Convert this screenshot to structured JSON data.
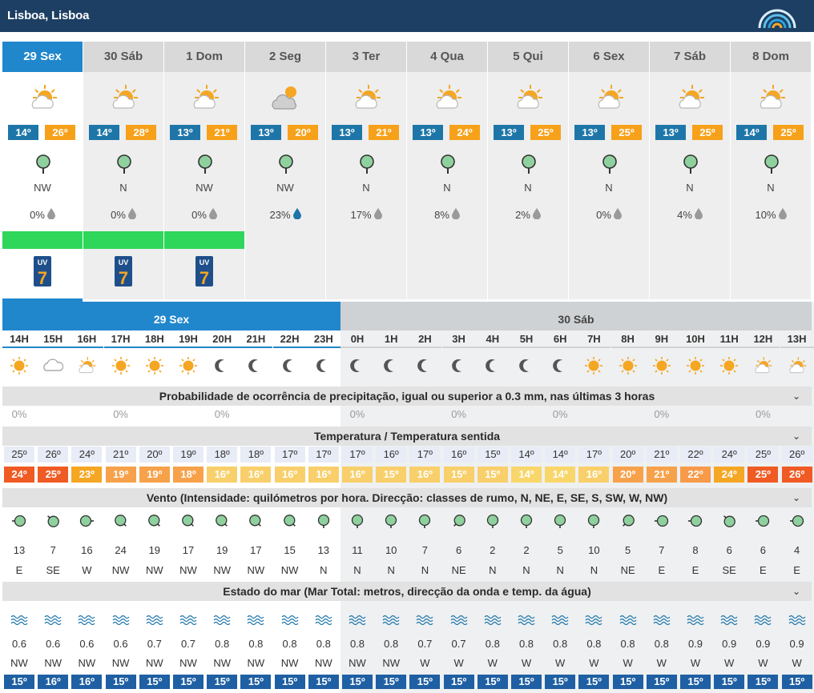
{
  "header": {
    "location": "Lisboa, Lisboa"
  },
  "days": [
    {
      "label": "29 Sex",
      "icon": "sun-cloud-icon",
      "tmin": "14º",
      "tmax": "26º",
      "wind_dir": "NW",
      "rain": "0%",
      "drop": "grey",
      "green": true,
      "uv": "7",
      "today": true
    },
    {
      "label": "30 Sáb",
      "icon": "sun-cloud-icon",
      "tmin": "14º",
      "tmax": "28º",
      "wind_dir": "N",
      "rain": "0%",
      "drop": "grey",
      "green": true,
      "uv": "7"
    },
    {
      "label": "1 Dom",
      "icon": "sun-cloud-icon",
      "tmin": "13º",
      "tmax": "21º",
      "wind_dir": "NW",
      "rain": "0%",
      "drop": "grey",
      "green": true,
      "uv": "7"
    },
    {
      "label": "2 Seg",
      "icon": "cloud-sun-icon",
      "tmin": "13º",
      "tmax": "20º",
      "wind_dir": "NW",
      "rain": "23%",
      "drop": "blue",
      "green": false
    },
    {
      "label": "3 Ter",
      "icon": "sun-cloud-icon",
      "tmin": "13º",
      "tmax": "21º",
      "wind_dir": "N",
      "rain": "17%",
      "drop": "grey",
      "green": false
    },
    {
      "label": "4 Qua",
      "icon": "sun-cloud-icon",
      "tmin": "13º",
      "tmax": "24º",
      "wind_dir": "N",
      "rain": "8%",
      "drop": "grey",
      "green": false
    },
    {
      "label": "5 Qui",
      "icon": "sun-cloud-icon",
      "tmin": "13º",
      "tmax": "25º",
      "wind_dir": "N",
      "rain": "2%",
      "drop": "grey",
      "green": false
    },
    {
      "label": "6 Sex",
      "icon": "sun-cloud-icon",
      "tmin": "13º",
      "tmax": "25º",
      "wind_dir": "N",
      "rain": "0%",
      "drop": "grey",
      "green": false
    },
    {
      "label": "7 Sáb",
      "icon": "sun-cloud-icon",
      "tmin": "13º",
      "tmax": "25º",
      "wind_dir": "N",
      "rain": "4%",
      "drop": "grey",
      "green": false
    },
    {
      "label": "8 Dom",
      "icon": "sun-cloud-icon",
      "tmin": "14º",
      "tmax": "25º",
      "wind_dir": "N",
      "rain": "10%",
      "drop": "grey",
      "green": false
    }
  ],
  "hourly": {
    "day_labels": [
      "29 Sex",
      "30 Sáb"
    ],
    "hours": [
      "14H",
      "15H",
      "16H",
      "17H",
      "18H",
      "19H",
      "20H",
      "21H",
      "22H",
      "23H",
      "0H",
      "1H",
      "2H",
      "3H",
      "4H",
      "5H",
      "6H",
      "7H",
      "8H",
      "9H",
      "10H",
      "11H",
      "12H",
      "13H"
    ],
    "icons": [
      "sun",
      "cloud",
      "sun-cloud",
      "sun",
      "sun",
      "sun",
      "moon",
      "moon",
      "moon",
      "moon",
      "moon",
      "moon",
      "moon",
      "moon",
      "moon",
      "moon",
      "moon",
      "sun",
      "sun",
      "sun",
      "sun",
      "sun",
      "sun-cloud",
      "sun-cloud"
    ],
    "sections": {
      "precip": "Probabilidade de ocorrência de precipitação, igual ou superior a 0.3 mm, nas últimas 3 horas",
      "temp": "Temperatura / Temperatura sentida",
      "wind": "Vento (Intensidade: quilómetros por hora. Direcção: classes de rumo, N, NE, E, SE, S, SW, W, NW)",
      "sea": "Estado do mar (Mar Total: metros, direcção da onda e temp. da água)"
    },
    "precip": [
      "0%",
      "",
      "",
      "0%",
      "",
      "",
      "0%",
      "",
      "",
      "",
      "0%",
      "",
      "",
      "0%",
      "",
      "",
      "0%",
      "",
      "",
      "0%",
      "",
      "",
      "0%",
      ""
    ],
    "temp": [
      "25º",
      "26º",
      "24º",
      "21º",
      "20º",
      "19º",
      "18º",
      "18º",
      "17º",
      "17º",
      "17º",
      "16º",
      "17º",
      "16º",
      "15º",
      "14º",
      "14º",
      "17º",
      "20º",
      "21º",
      "22º",
      "24º",
      "25º",
      "26º"
    ],
    "feels": [
      "24º",
      "25º",
      "23º",
      "19º",
      "19º",
      "18º",
      "16º",
      "16º",
      "16º",
      "16º",
      "16º",
      "15º",
      "16º",
      "15º",
      "15º",
      "14º",
      "14º",
      "16º",
      "20º",
      "21º",
      "22º",
      "24º",
      "25º",
      "26º"
    ],
    "feels_colors": [
      "#f05a23",
      "#f05a23",
      "#f5a623",
      "#f7a14a",
      "#f7a14a",
      "#f7a14a",
      "#f8cf6a",
      "#f8cf6a",
      "#f8cf6a",
      "#f8cf6a",
      "#f8cf6a",
      "#f8cf6a",
      "#f8cf6a",
      "#f8cf6a",
      "#f8cf6a",
      "#f8d66a",
      "#f8d66a",
      "#f8cf6a",
      "#f7a14a",
      "#f7a14a",
      "#f79a4a",
      "#f5a623",
      "#f05a23",
      "#f05a23"
    ],
    "wind_speed": [
      "13",
      "7",
      "16",
      "24",
      "19",
      "17",
      "19",
      "17",
      "15",
      "13",
      "11",
      "10",
      "7",
      "6",
      "2",
      "2",
      "5",
      "10",
      "5",
      "7",
      "8",
      "6",
      "6",
      "4"
    ],
    "wind_dir": [
      "E",
      "SE",
      "W",
      "NW",
      "NW",
      "NW",
      "NW",
      "NW",
      "NW",
      "N",
      "N",
      "N",
      "N",
      "NE",
      "N",
      "N",
      "N",
      "N",
      "NE",
      "E",
      "E",
      "SE",
      "E",
      "E"
    ],
    "wave": [
      "0.6",
      "0.6",
      "0.6",
      "0.6",
      "0.7",
      "0.7",
      "0.8",
      "0.8",
      "0.8",
      "0.8",
      "0.8",
      "0.8",
      "0.7",
      "0.7",
      "0.8",
      "0.8",
      "0.8",
      "0.8",
      "0.8",
      "0.8",
      "0.9",
      "0.9",
      "0.9",
      "0.9"
    ],
    "wave_dir": [
      "NW",
      "NW",
      "NW",
      "NW",
      "NW",
      "NW",
      "NW",
      "NW",
      "NW",
      "NW",
      "NW",
      "NW",
      "W",
      "W",
      "W",
      "W",
      "W",
      "W",
      "W",
      "W",
      "W",
      "W",
      "W",
      "W"
    ],
    "water": [
      "15º",
      "16º",
      "16º",
      "15º",
      "15º",
      "15º",
      "15º",
      "15º",
      "15º",
      "15º",
      "15º",
      "15º",
      "15º",
      "15º",
      "15º",
      "15º",
      "15º",
      "15º",
      "15º",
      "15º",
      "15º",
      "15º",
      "15º",
      "15º"
    ]
  },
  "colors": {
    "header": "#1d3f63",
    "accent": "#2087cc",
    "tmin": "#1e76a8",
    "tmax": "#f7a11a",
    "water": "#1f5fa3",
    "green": "#2ed65a"
  }
}
